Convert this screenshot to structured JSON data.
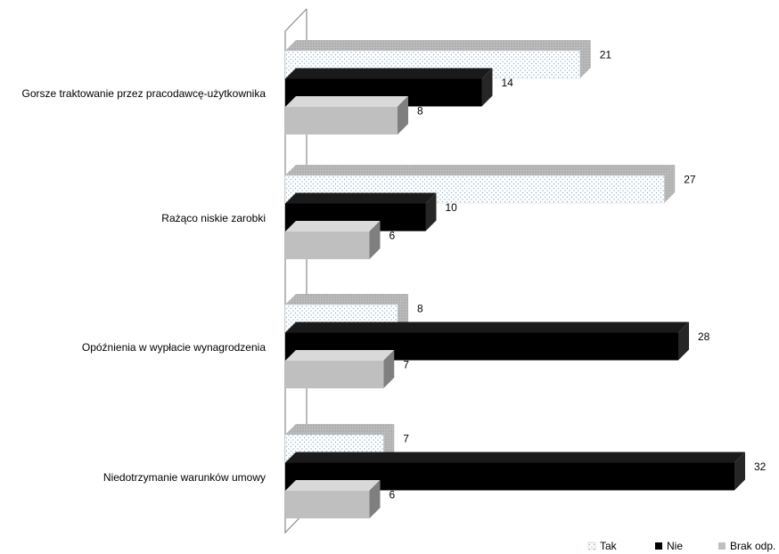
{
  "chart_data": {
    "type": "bar",
    "orientation": "horizontal",
    "three_d": true,
    "grid": false,
    "legend_position": "bottom-right",
    "categories": [
      "Gorsze traktowanie przez pracodawcę-użytkownika",
      "Rażąco niskie zarobki",
      "Opóźnienia w wypłacie wynagrodzenia",
      "Niedotrzymanie warunków umowy"
    ],
    "series": [
      {
        "name": "Tak",
        "values": [
          21,
          27,
          8,
          7
        ],
        "color": "#dfe9f0",
        "pattern": "dotted"
      },
      {
        "name": "Nie",
        "values": [
          14,
          10,
          28,
          32
        ],
        "color": "#000000",
        "pattern": "solid"
      },
      {
        "name": "Brak odp.",
        "values": [
          8,
          6,
          7,
          6
        ],
        "color": "#bfbfbf",
        "pattern": "solid"
      }
    ],
    "xlim": [
      0,
      32
    ]
  }
}
